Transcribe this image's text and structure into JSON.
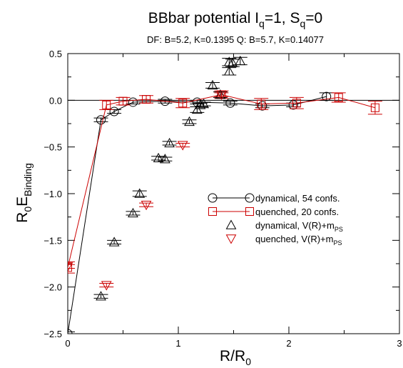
{
  "chart_data": {
    "type": "scatter",
    "title_main": "BBbar potential I",
    "title_i_sub": "q",
    "title_mid": "=1, S",
    "title_s_sub": "q",
    "title_end": "=0",
    "subtitle": "DF: B=5.2, K=0.1395   Q: B=5.7, K=0.14077",
    "xlabel_main": "R/R",
    "xlabel_sub": "0",
    "ylabel_main": "R",
    "ylabel_sub0": "0",
    "ylabel_mid": "E",
    "ylabel_sub1": "Binding",
    "xlim": [
      0,
      3
    ],
    "ylim": [
      -2.5,
      0.5
    ],
    "xticks": [
      0,
      1,
      2,
      3
    ],
    "xtick_labels": [
      "0",
      "1",
      "2",
      "3"
    ],
    "yticks": [
      0.5,
      0.0,
      -0.5,
      -1.0,
      -1.5,
      -2.0,
      -2.5
    ],
    "ytick_labels": [
      "0.5",
      "0.0",
      "−0.5",
      "−1.0",
      "−1.5",
      "−2.0",
      "−2.5"
    ],
    "zero_line": true,
    "legend": [
      {
        "text": "dynamical, 54 confs.",
        "marker": "circle",
        "line": true,
        "color": "#000000"
      },
      {
        "text": "quenched, 20 confs.",
        "marker": "square",
        "line": true,
        "color": "#cc0000"
      },
      {
        "text": "dynamical, V(R)+m",
        "sub": "PS",
        "marker": "triangle-up",
        "line": false,
        "color": "#000000"
      },
      {
        "text": "quenched, V(R)+m",
        "sub": "PS",
        "marker": "triangle-down",
        "line": false,
        "color": "#cc0000"
      }
    ],
    "series": [
      {
        "name": "dynamical, 54 confs.",
        "marker": "circle",
        "color": "#000000",
        "connect": true,
        "x": [
          0.0,
          0.3,
          0.42,
          0.59,
          0.88,
          1.17,
          1.47,
          1.76,
          2.04,
          2.34
        ],
        "y": [
          -2.5,
          -0.21,
          -0.12,
          -0.02,
          -0.01,
          -0.02,
          -0.03,
          -0.06,
          -0.05,
          0.04
        ],
        "err": [
          0.02,
          0.02,
          0.02,
          0.02,
          0.02,
          0.02,
          0.02,
          0.02,
          0.02,
          0.04
        ]
      },
      {
        "name": "quenched, 20 confs.",
        "marker": "square",
        "color": "#cc0000",
        "connect": true,
        "x": [
          0.0,
          0.35,
          0.5,
          0.71,
          1.04,
          1.39,
          1.75,
          2.07,
          2.45,
          2.78
        ],
        "y": [
          -1.79,
          -0.05,
          -0.01,
          0.01,
          -0.03,
          0.06,
          -0.04,
          -0.03,
          0.03,
          -0.08
        ],
        "err": [
          0.06,
          0.05,
          0.04,
          0.04,
          0.05,
          0.04,
          0.06,
          0.06,
          0.05,
          0.07
        ]
      },
      {
        "name": "dynamical, V(R)+m_PS",
        "marker": "triangle-up",
        "color": "#000000",
        "connect": false,
        "x": [
          0.3,
          0.42,
          0.59,
          0.65,
          0.82,
          0.88,
          0.92,
          1.1,
          1.17,
          1.2,
          1.23,
          1.31,
          1.38,
          1.46,
          1.46,
          1.49,
          1.56
        ],
        "y": [
          -2.1,
          -1.52,
          -1.21,
          -1.0,
          -0.62,
          -0.63,
          -0.46,
          -0.23,
          -0.1,
          -0.05,
          -0.04,
          0.16,
          0.06,
          0.31,
          0.41,
          0.4,
          0.42
        ],
        "err": [
          0.02,
          0.02,
          0.02,
          0.03,
          0.02,
          0.02,
          0.02,
          0.02,
          0.03,
          0.02,
          0.02,
          0.03,
          0.03,
          0.04,
          0.04,
          0.04,
          0.04
        ]
      },
      {
        "name": "quenched, V(R)+m_PS",
        "marker": "triangle-down",
        "color": "#cc0000",
        "connect": false,
        "x": [
          0.0,
          0.35,
          0.71,
          1.04,
          1.39
        ],
        "y": [
          -1.78,
          -1.98,
          -1.12,
          -0.48,
          0.06
        ],
        "err": [
          0.02,
          0.02,
          0.02,
          0.02,
          0.02
        ]
      }
    ]
  }
}
